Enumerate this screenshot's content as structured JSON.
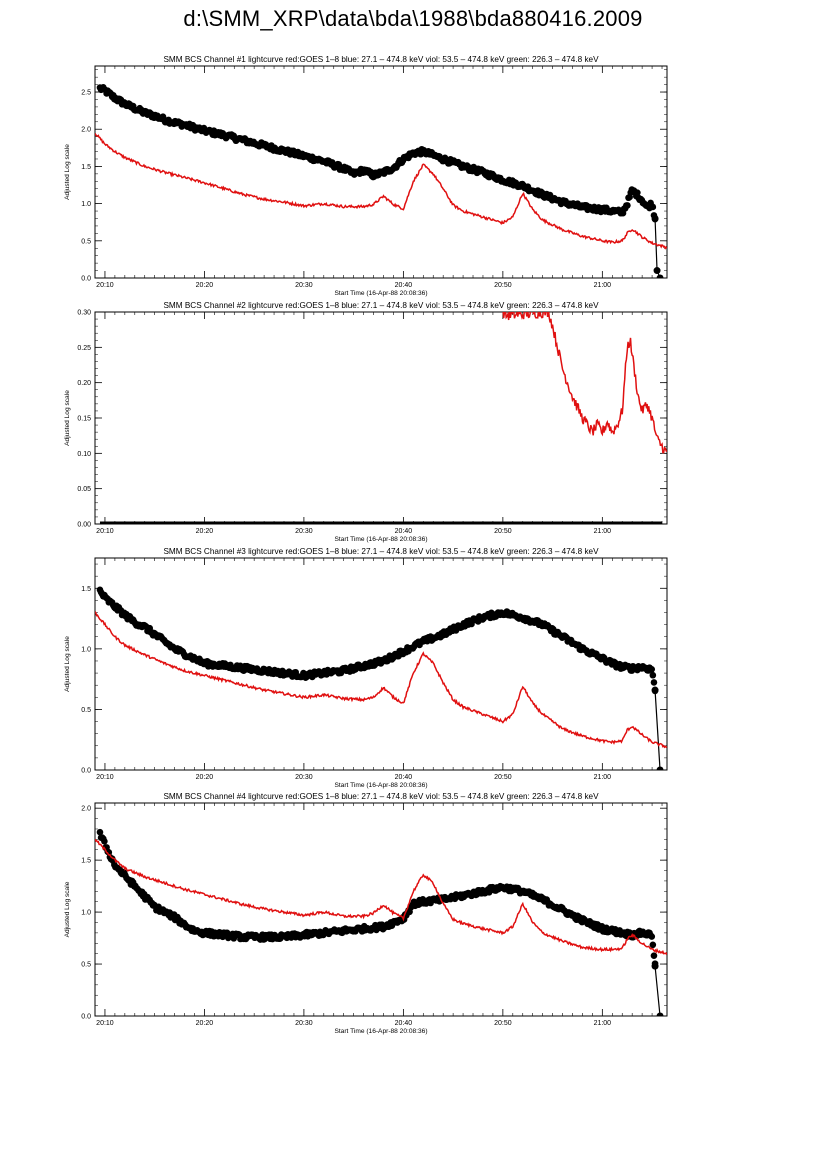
{
  "page": {
    "title": "d:\\SMM_XRP\\data\\bda\\1988\\bda880416.2009"
  },
  "chart_data": [
    {
      "type": "line",
      "title": "SMM BCS Channel #1 lightcurve  red:GOES 1–8  blue: 27.1 – 474.8 keV  viol: 53.5 – 474.8 keV  green: 226.3 – 474.8 keV",
      "xlabel": "Start Time (16-Apr-88 20:08:36)",
      "ylabel": "Adjusted Log scale",
      "xlim": [
        9,
        66.5
      ],
      "ylim": [
        0,
        2.85
      ],
      "x_tick_values": [
        10,
        20,
        30,
        40,
        50,
        60
      ],
      "x_tick_labels": [
        "20:10",
        "20:20",
        "20:30",
        "20:40",
        "20:50",
        "21:00"
      ],
      "y_ticks": [
        0.0,
        0.5,
        1.0,
        1.5,
        2.0,
        2.5
      ],
      "y_tick_labels": [
        "0.0",
        "0.5",
        "1.0",
        "1.5",
        "2.0",
        "2.5"
      ],
      "series": [
        {
          "name": "SMM BCS counts",
          "color": "#000000",
          "style": "points",
          "x": [
            9.5,
            10,
            11,
            12,
            13,
            14,
            15,
            16,
            17,
            18,
            19,
            20,
            22,
            24,
            26,
            28,
            30,
            32,
            34,
            35,
            36,
            37,
            38,
            39,
            40,
            41,
            42,
            43,
            44,
            45,
            46,
            48,
            50,
            52,
            54,
            56,
            58,
            60,
            61,
            62,
            62.5,
            63,
            63.5,
            64,
            64.5,
            65,
            65.3,
            65.5,
            65.8
          ],
          "y": [
            2.55,
            2.52,
            2.42,
            2.34,
            2.28,
            2.22,
            2.18,
            2.13,
            2.09,
            2.06,
            2.02,
            1.98,
            1.92,
            1.85,
            1.78,
            1.71,
            1.64,
            1.57,
            1.47,
            1.4,
            1.45,
            1.38,
            1.42,
            1.48,
            1.6,
            1.68,
            1.7,
            1.65,
            1.6,
            1.55,
            1.5,
            1.42,
            1.32,
            1.24,
            1.12,
            1.02,
            0.95,
            0.92,
            0.9,
            0.88,
            1.0,
            1.18,
            1.12,
            1.05,
            0.95,
            1.0,
            0.8,
            0.1,
            0.0
          ],
          "drop_from_x": 65.3
        },
        {
          "name": "GOES 1–8",
          "color": "#e01010",
          "style": "line",
          "x": [
            9,
            10,
            11,
            12,
            14,
            16,
            18,
            20,
            22,
            24,
            26,
            28,
            30,
            32,
            34,
            36,
            37,
            38,
            39,
            40,
            41,
            42,
            43,
            44,
            45,
            46,
            48,
            50,
            51,
            52,
            53,
            54,
            56,
            58,
            60,
            61,
            62,
            62.5,
            63,
            64,
            65,
            66.5
          ],
          "y": [
            1.95,
            1.8,
            1.7,
            1.62,
            1.5,
            1.42,
            1.35,
            1.28,
            1.2,
            1.12,
            1.06,
            1.02,
            0.97,
            1.0,
            0.96,
            0.96,
            0.99,
            1.1,
            0.99,
            0.93,
            1.3,
            1.52,
            1.4,
            1.2,
            0.98,
            0.9,
            0.82,
            0.74,
            0.82,
            1.14,
            0.92,
            0.78,
            0.65,
            0.56,
            0.5,
            0.48,
            0.5,
            0.6,
            0.66,
            0.55,
            0.47,
            0.41
          ]
        }
      ]
    },
    {
      "type": "line",
      "title": "SMM BCS Channel #2 lightcurve  red:GOES 1–8  blue: 27.1 – 474.8 keV  viol: 53.5 – 474.8 keV  green: 226.3 – 474.8 keV",
      "xlabel": "Start Time (16-Apr-88 20:08:36)",
      "ylabel": "Adjusted Log scale",
      "xlim": [
        9,
        66.5
      ],
      "ylim": [
        0,
        0.3
      ],
      "x_tick_values": [
        10,
        20,
        30,
        40,
        50,
        60
      ],
      "x_tick_labels": [
        "20:10",
        "20:20",
        "20:30",
        "20:40",
        "20:50",
        "21:00"
      ],
      "y_ticks": [
        0.0,
        0.05,
        0.1,
        0.15,
        0.2,
        0.25,
        0.3
      ],
      "y_tick_labels": [
        "0.00",
        "0.05",
        "0.10",
        "0.15",
        "0.20",
        "0.25",
        "0.30"
      ],
      "series": [
        {
          "name": "SMM BCS counts",
          "color": "#000000",
          "style": "baseline",
          "x": [
            9.5,
            66
          ],
          "y": [
            0.0,
            0.0
          ]
        },
        {
          "name": "GOES 1–8",
          "color": "#e01010",
          "style": "line",
          "x": [
            50,
            50.4,
            54.6,
            55,
            55.5,
            56,
            56.5,
            57,
            57.5,
            58,
            58.5,
            59,
            59.5,
            60,
            60.5,
            61,
            61.5,
            62,
            62.5,
            62.8,
            63.2,
            63.6,
            64,
            64.5,
            65,
            65.5,
            66,
            66.5
          ],
          "y": [
            0.3,
            0.295,
            0.3,
            0.28,
            0.25,
            0.22,
            0.2,
            0.18,
            0.165,
            0.15,
            0.14,
            0.13,
            0.14,
            0.13,
            0.145,
            0.13,
            0.14,
            0.16,
            0.25,
            0.26,
            0.22,
            0.18,
            0.16,
            0.17,
            0.15,
            0.12,
            0.11,
            0.1
          ]
        }
      ]
    },
    {
      "type": "line",
      "title": "SMM BCS Channel #3 lightcurve  red:GOES 1–8  blue: 27.1 – 474.8 keV  viol: 53.5 – 474.8 keV  green: 226.3 – 474.8 keV",
      "xlabel": "Start Time (16-Apr-88 20:08:36)",
      "ylabel": "Adjusted Log scale",
      "xlim": [
        9,
        66.5
      ],
      "ylim": [
        0,
        1.75
      ],
      "x_tick_values": [
        10,
        20,
        30,
        40,
        50,
        60
      ],
      "x_tick_labels": [
        "20:10",
        "20:20",
        "20:30",
        "20:40",
        "20:50",
        "21:00"
      ],
      "y_ticks": [
        0.0,
        0.5,
        1.0,
        1.5
      ],
      "y_tick_labels": [
        "0.0",
        "0.5",
        "1.0",
        "1.5"
      ],
      "series": [
        {
          "name": "SMM BCS counts",
          "color": "#000000",
          "style": "points",
          "x": [
            9.5,
            10,
            11,
            12,
            13,
            14,
            15,
            16,
            17,
            18,
            19,
            20,
            22,
            24,
            26,
            28,
            30,
            32,
            34,
            36,
            38,
            40,
            42,
            44,
            46,
            48,
            50,
            52,
            54,
            56,
            58,
            59,
            60,
            61,
            62,
            63,
            64,
            65,
            65.3,
            65.8
          ],
          "y": [
            1.48,
            1.42,
            1.35,
            1.28,
            1.22,
            1.18,
            1.12,
            1.06,
            1.0,
            0.96,
            0.92,
            0.88,
            0.86,
            0.84,
            0.82,
            0.8,
            0.78,
            0.8,
            0.82,
            0.86,
            0.9,
            0.98,
            1.06,
            1.12,
            1.2,
            1.26,
            1.3,
            1.26,
            1.2,
            1.1,
            1.0,
            0.96,
            0.92,
            0.88,
            0.85,
            0.84,
            0.85,
            0.83,
            0.66,
            0.0
          ],
          "drop_from_x": 65.3
        },
        {
          "name": "GOES 1–8",
          "color": "#e01010",
          "style": "line",
          "x": [
            9,
            10,
            11,
            12,
            14,
            16,
            18,
            20,
            22,
            24,
            26,
            28,
            30,
            32,
            34,
            36,
            37,
            38,
            39,
            40,
            41,
            42,
            43,
            44,
            45,
            46,
            48,
            50,
            51,
            52,
            53,
            54,
            56,
            58,
            60,
            61,
            62,
            62.5,
            63,
            64,
            65,
            66.5
          ],
          "y": [
            1.3,
            1.2,
            1.1,
            1.03,
            0.95,
            0.88,
            0.82,
            0.78,
            0.74,
            0.7,
            0.66,
            0.63,
            0.6,
            0.62,
            0.59,
            0.58,
            0.6,
            0.68,
            0.6,
            0.55,
            0.8,
            0.96,
            0.88,
            0.72,
            0.58,
            0.52,
            0.46,
            0.4,
            0.46,
            0.69,
            0.55,
            0.46,
            0.34,
            0.28,
            0.24,
            0.23,
            0.24,
            0.33,
            0.36,
            0.29,
            0.23,
            0.19
          ]
        }
      ]
    },
    {
      "type": "line",
      "title": "SMM BCS Channel #4 lightcurve  red:GOES 1–8  blue: 27.1 – 474.8 keV  viol: 53.5 – 474.8 keV  green: 226.3 – 474.8 keV",
      "xlabel": "Start Time (16-Apr-88 20:08:36)",
      "ylabel": "Adjusted Log scale",
      "xlim": [
        9,
        66.5
      ],
      "ylim": [
        0,
        2.05
      ],
      "x_tick_values": [
        10,
        20,
        30,
        40,
        50,
        60
      ],
      "x_tick_labels": [
        "20:10",
        "20:20",
        "20:30",
        "20:40",
        "20:50",
        "21:00"
      ],
      "y_ticks": [
        0.0,
        0.5,
        1.0,
        1.5,
        2.0
      ],
      "y_tick_labels": [
        "0.0",
        "0.5",
        "1.0",
        "1.5",
        "2.0"
      ],
      "series": [
        {
          "name": "SMM BCS counts",
          "color": "#000000",
          "style": "points",
          "x": [
            9.5,
            10,
            10.5,
            11,
            12,
            13,
            14,
            15,
            16,
            17,
            18,
            19,
            20,
            22,
            24,
            26,
            28,
            30,
            32,
            34,
            36,
            38,
            40,
            41,
            42,
            44,
            46,
            48,
            50,
            52,
            54,
            56,
            58,
            60,
            62,
            63,
            64,
            65,
            65.3,
            65.8
          ],
          "y": [
            1.75,
            1.65,
            1.55,
            1.45,
            1.35,
            1.25,
            1.15,
            1.05,
            1.0,
            0.95,
            0.88,
            0.82,
            0.8,
            0.78,
            0.76,
            0.76,
            0.76,
            0.78,
            0.8,
            0.82,
            0.84,
            0.86,
            0.94,
            1.08,
            1.1,
            1.12,
            1.16,
            1.2,
            1.24,
            1.2,
            1.12,
            1.02,
            0.92,
            0.84,
            0.8,
            0.78,
            0.8,
            0.78,
            0.48,
            0.0
          ],
          "drop_from_x": 65.3
        },
        {
          "name": "GOES 1–8",
          "color": "#e01010",
          "style": "line",
          "x": [
            9,
            10,
            11,
            12,
            14,
            16,
            18,
            20,
            22,
            24,
            26,
            28,
            30,
            32,
            34,
            36,
            37,
            38,
            39,
            40,
            41,
            42,
            43,
            44,
            45,
            46,
            48,
            50,
            51,
            52,
            53,
            54,
            56,
            58,
            60,
            61,
            62,
            62.5,
            63,
            64,
            65,
            66.5
          ],
          "y": [
            1.7,
            1.6,
            1.5,
            1.42,
            1.34,
            1.28,
            1.22,
            1.17,
            1.12,
            1.07,
            1.03,
            1.0,
            0.97,
            1.0,
            0.96,
            0.96,
            0.99,
            1.07,
            0.99,
            0.94,
            1.2,
            1.36,
            1.28,
            1.08,
            0.93,
            0.89,
            0.84,
            0.8,
            0.86,
            1.08,
            0.9,
            0.8,
            0.72,
            0.66,
            0.64,
            0.64,
            0.65,
            0.74,
            0.78,
            0.7,
            0.64,
            0.6
          ]
        }
      ]
    }
  ]
}
